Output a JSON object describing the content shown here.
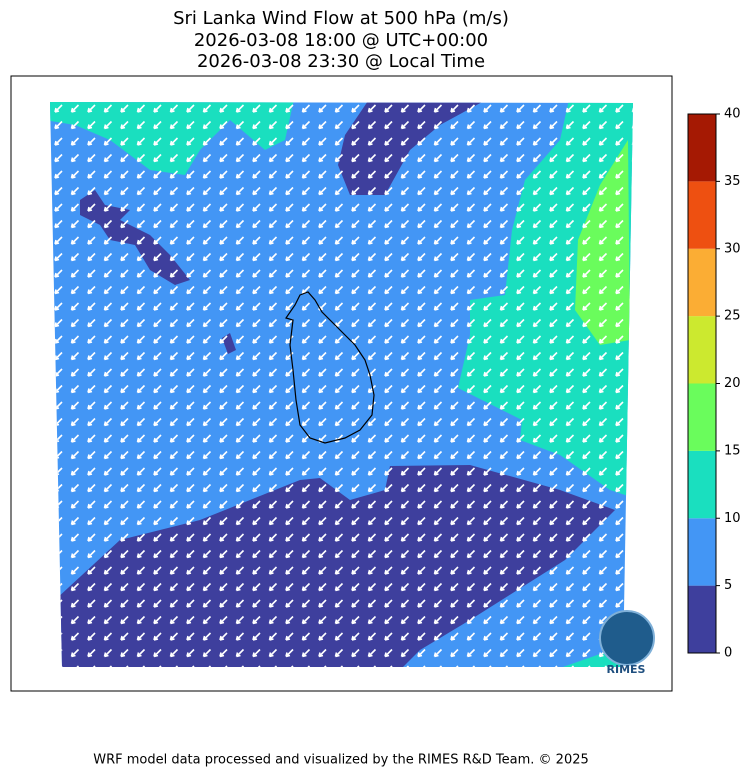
{
  "title": [
    "Sri Lanka Wind Flow at 500 hPa (m/s)",
    "2026-03-08 18:00 @ UTC+00:00",
    "2026-03-08 23:30 @ Local Time"
  ],
  "colorbar": {
    "ticks": [
      0,
      5,
      10,
      15,
      20,
      25,
      30,
      35,
      40
    ],
    "colors": [
      "#3e3f9d",
      "#4396f5",
      "#1adfbf",
      "#6afc5c",
      "#cce92f",
      "#fbad34",
      "#ee5011",
      "#a51903"
    ]
  },
  "logo": "RIMES",
  "footer": "WRF model data processed and visualized by the RIMES R&D Team. © 2025"
}
